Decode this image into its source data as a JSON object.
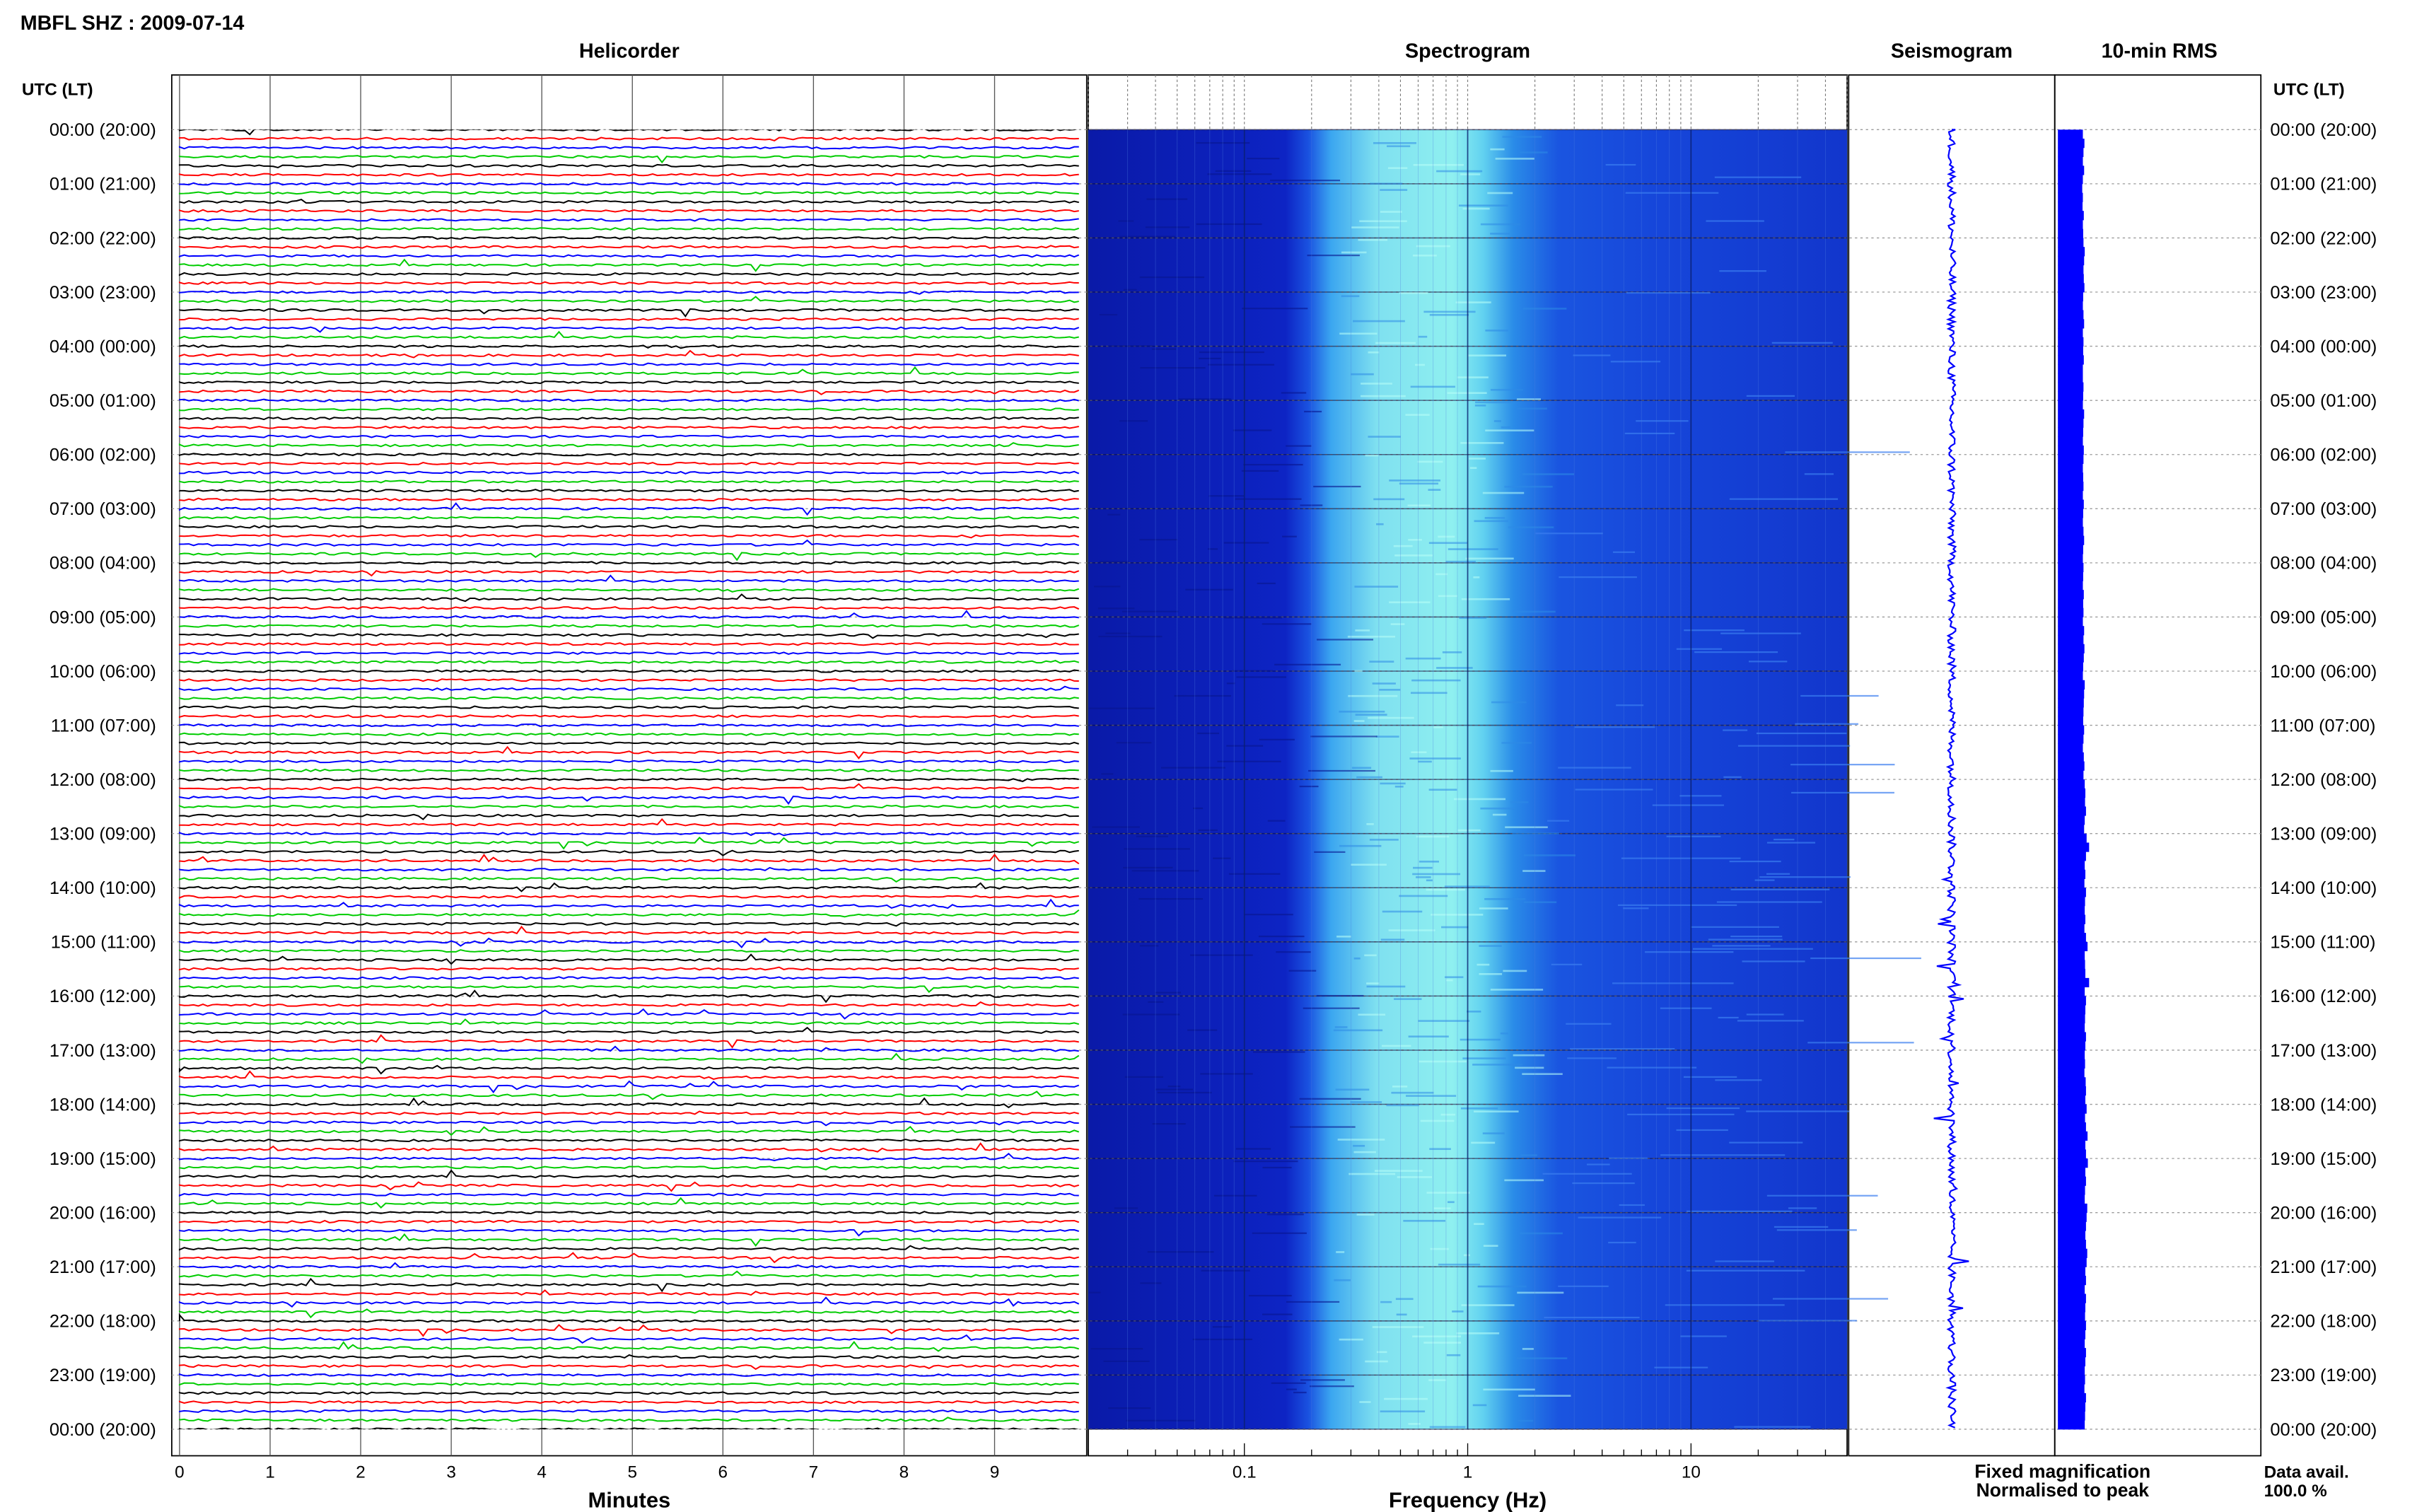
{
  "header": {
    "title": "MBFL SHZ : 2009-07-14"
  },
  "panels": {
    "helicorder": "Helicorder",
    "spectrogram": "Spectrogram",
    "seismogram": "Seismogram",
    "rms": "10-min RMS"
  },
  "axis": {
    "utc_label_left": "UTC (LT)",
    "utc_label_right": "UTC (LT)",
    "minutes_label": "Minutes",
    "frequency_label": "Frequency (Hz)"
  },
  "legend": {
    "fixed": "Fixed magnification",
    "fixed_color": "#0000ff",
    "normalised": "Normalised to peak",
    "normalised_color": "#ff0000"
  },
  "data_avail": {
    "label": "Data avail.",
    "value": "100.0 %"
  },
  "colors": {
    "trace_cycle": [
      "#000000",
      "#ff0000",
      "#0000ff",
      "#00cc00"
    ],
    "spectrogram_low": "#0a1aa8",
    "spectrogram_high": "#8ff0f0",
    "seismogram": "#0000ff",
    "rms": "#0000ff"
  },
  "chart_data": {
    "type": "heatmap",
    "y_labels": [
      "00:00 (20:00)",
      "01:00 (21:00)",
      "02:00 (22:00)",
      "03:00 (23:00)",
      "04:00 (00:00)",
      "05:00 (01:00)",
      "06:00 (02:00)",
      "07:00 (03:00)",
      "08:00 (04:00)",
      "09:00 (05:00)",
      "10:00 (06:00)",
      "11:00 (07:00)",
      "12:00 (08:00)",
      "13:00 (09:00)",
      "14:00 (10:00)",
      "15:00 (11:00)",
      "16:00 (12:00)",
      "17:00 (13:00)",
      "18:00 (14:00)",
      "19:00 (15:00)",
      "20:00 (16:00)",
      "21:00 (17:00)",
      "22:00 (18:00)",
      "23:00 (19:00)",
      "00:00 (20:00)"
    ],
    "minutes_ticks": [
      "0",
      "1",
      "2",
      "3",
      "4",
      "5",
      "6",
      "7",
      "8",
      "9"
    ],
    "minutes_range": [
      0,
      10
    ],
    "frequency_ticks": [
      {
        "value": 0.1,
        "label": "0.1"
      },
      {
        "value": 1,
        "label": "1"
      },
      {
        "value": 10,
        "label": "10"
      }
    ],
    "frequency_range": [
      0.02,
      50
    ],
    "frequency_scale": "log",
    "traces_per_hour": 6,
    "spectrogram_energy_band_hz": [
      0.25,
      1.8
    ],
    "rms_values": [
      0.8,
      0.85,
      0.82,
      0.8,
      0.84,
      0.8,
      0.78,
      0.8,
      0.79,
      0.83,
      0.8,
      0.81,
      0.82,
      0.86,
      0.84,
      0.82,
      0.83,
      0.85,
      0.81,
      0.8,
      0.82,
      0.84,
      0.8,
      0.82,
      0.81,
      0.83,
      0.8,
      0.8,
      0.82,
      0.81,
      0.8,
      0.84,
      0.82,
      0.81,
      0.8,
      0.83,
      0.82,
      0.8,
      0.81,
      0.82,
      0.8,
      0.83,
      0.81,
      0.8,
      0.82,
      0.84,
      0.81,
      0.8,
      0.82,
      0.81,
      0.8,
      0.83,
      0.81,
      0.82,
      0.8,
      0.84,
      0.82,
      0.85,
      0.83,
      0.81,
      0.8,
      0.86,
      0.84,
      0.83,
      0.82,
      0.81,
      0.84,
      0.82,
      0.8,
      0.83,
      0.85,
      0.82,
      0.86,
      0.88,
      0.87,
      0.9,
      0.86,
      0.84,
      0.92,
      1.0,
      0.9,
      0.86,
      0.88,
      0.85,
      0.9,
      0.87,
      0.86,
      0.88,
      0.85,
      0.9,
      0.95,
      0.86,
      0.87,
      0.88,
      1.0,
      0.86,
      0.9,
      0.88,
      0.87,
      0.86,
      0.9,
      0.88,
      0.86,
      0.87,
      0.85,
      0.89,
      0.9,
      0.88,
      0.92,
      0.87,
      0.9,
      0.95,
      0.88,
      0.9,
      0.96,
      0.88,
      0.9,
      0.87,
      0.86,
      0.94,
      0.92,
      0.9,
      0.88,
      0.9,
      0.94,
      0.92,
      0.88,
      0.9,
      0.86,
      0.9,
      0.88,
      0.87,
      0.9,
      0.88,
      0.86,
      0.9,
      0.88,
      0.86,
      0.87,
      0.85,
      0.9,
      0.88,
      0.87,
      0.86
    ]
  }
}
